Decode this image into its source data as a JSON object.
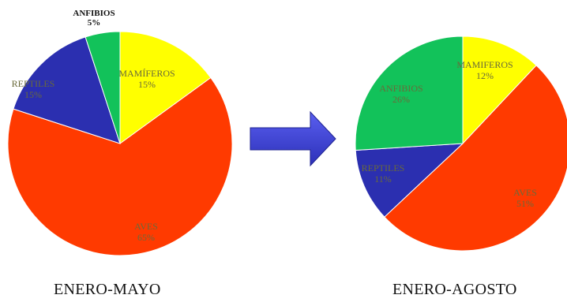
{
  "chart_data": [
    {
      "type": "pie",
      "title": "ENERO-MAYO",
      "slices": [
        {
          "label": "MAMÍFEROS",
          "value": 15,
          "display": "15%",
          "color": "#ffff00"
        },
        {
          "label": "AVES",
          "value": 65,
          "display": "65%",
          "color": "#ff3a00"
        },
        {
          "label": "REPTILES",
          "value": 15,
          "display": "15%",
          "color": "#2b2fb0"
        },
        {
          "label": "ANFIBIOS",
          "value": 5,
          "display": "5%",
          "color": "#12c25a"
        }
      ],
      "start_at": "12 o'clock",
      "direction": "clockwise",
      "grid": false,
      "legend": "none"
    },
    {
      "type": "pie",
      "title": "ENERO-AGOSTO",
      "slices": [
        {
          "label": "MAMIFEROS",
          "value": 12,
          "display": "12%",
          "color": "#ffff00"
        },
        {
          "label": "AVES",
          "value": 51,
          "display": "51%",
          "color": "#ff3a00"
        },
        {
          "label": "REPTILES",
          "value": 11,
          "display": "11%",
          "color": "#2b2fb0"
        },
        {
          "label": "ANFIBIOS",
          "value": 26,
          "display": "26%",
          "color": "#12c25a"
        }
      ],
      "start_at": "12 o'clock",
      "direction": "clockwise",
      "grid": false,
      "legend": "none"
    }
  ],
  "arrow": {
    "color": "#3b3fd6",
    "icon": "right-arrow-icon"
  }
}
